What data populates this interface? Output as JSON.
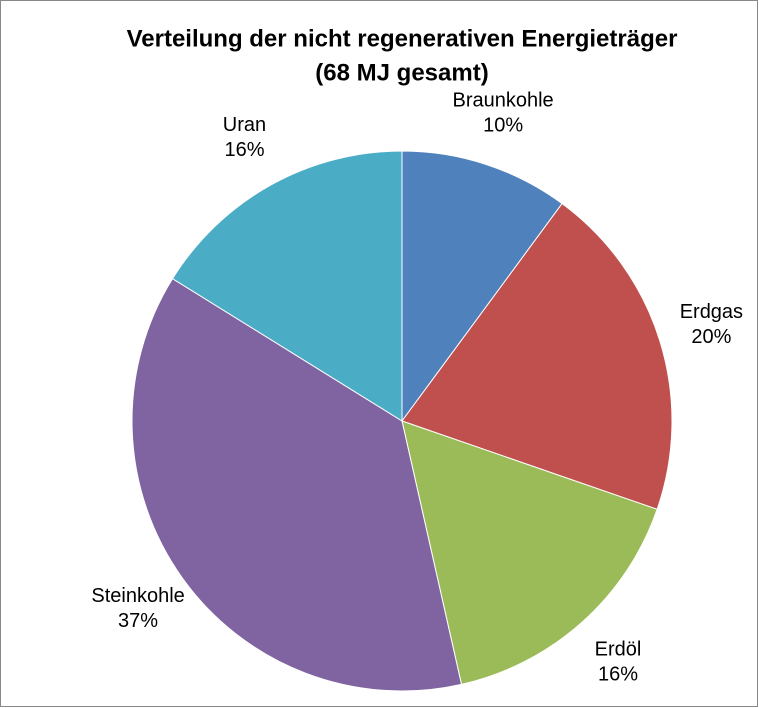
{
  "chart_data": {
    "type": "pie",
    "title": "Verteilung der nicht regenerativen Energieträger",
    "subtitle": "(68 MJ gesamt)",
    "categories": [
      "Braunkohle",
      "Erdgas",
      "Erdöl",
      "Steinkohle",
      "Uran"
    ],
    "values": [
      10,
      20,
      16,
      37,
      16
    ],
    "value_labels": [
      "10%",
      "20%",
      "16%",
      "37%",
      "16%"
    ],
    "colors": [
      "#4f81bd",
      "#c0504d",
      "#9bbb59",
      "#8064a2",
      "#4bacc6"
    ]
  }
}
